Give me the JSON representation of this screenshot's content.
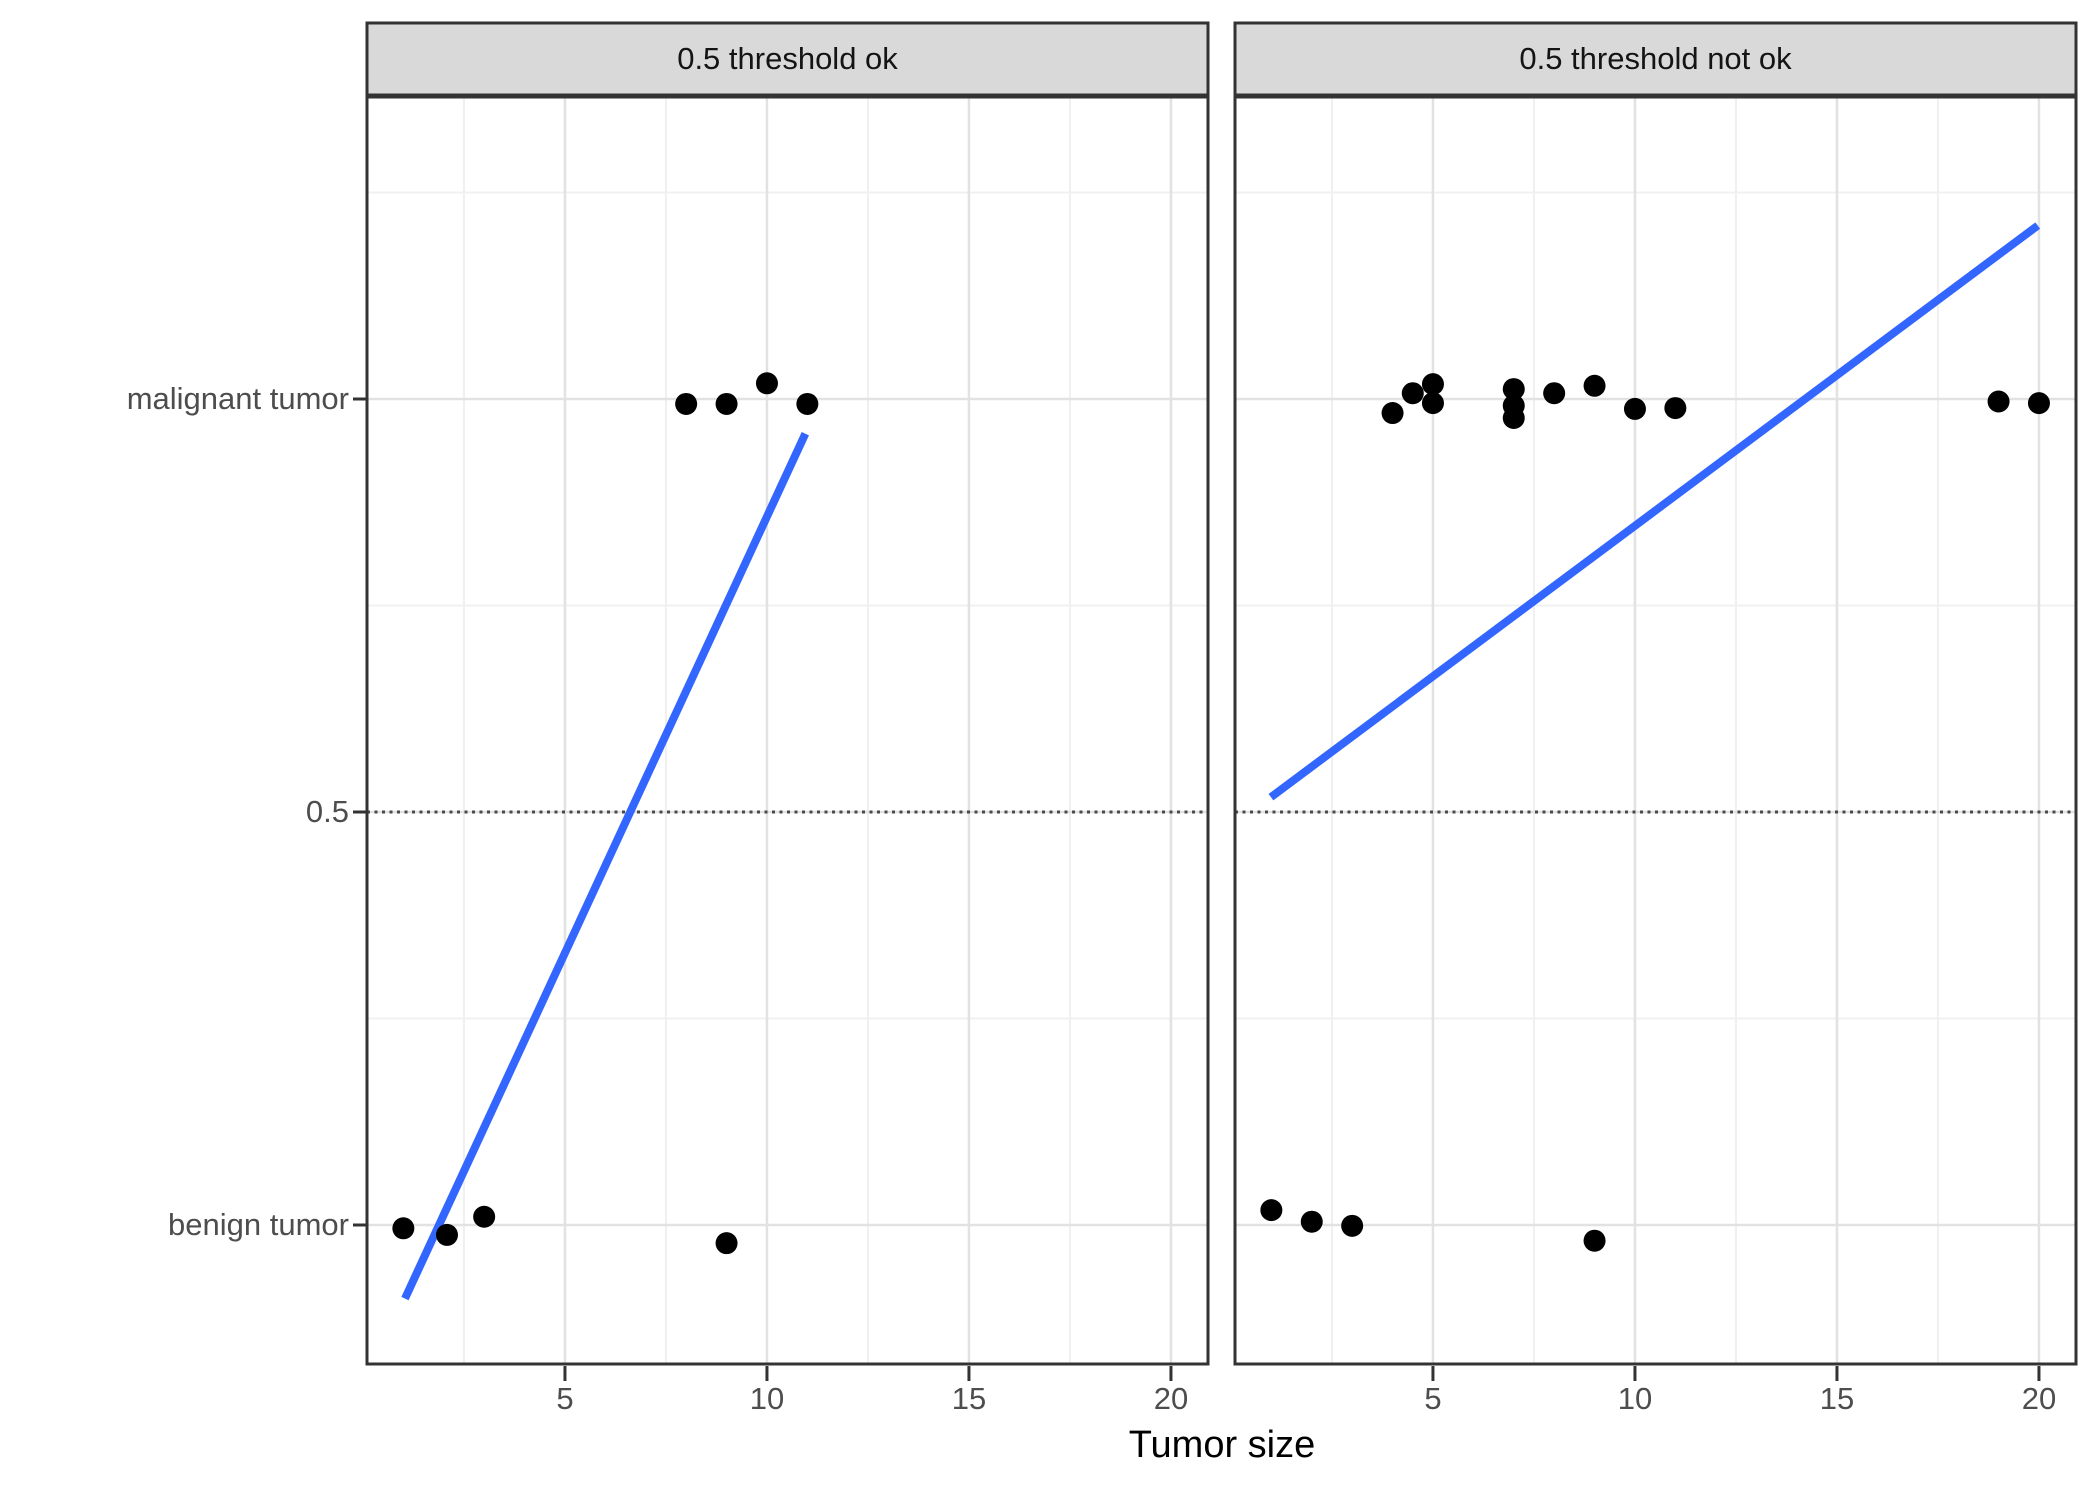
{
  "figure": {
    "xlabel": "Tumor size",
    "x_ticks": [
      5,
      10,
      15,
      20
    ],
    "y_ticks": [
      {
        "label": "malignant tumor",
        "value": 1
      },
      {
        "label": "0.5",
        "value": 0.5
      },
      {
        "label": "benign tumor",
        "value": 0
      }
    ],
    "threshold_value": 0.5
  },
  "chart_data": {
    "type": "scatter",
    "title": "",
    "xlabel": "Tumor size",
    "ylabel": "",
    "xlim": [
      0.1,
      20.9
    ],
    "ylim": [
      -0.17,
      1.37
    ],
    "x_ticks": [
      5,
      10,
      15,
      20
    ],
    "y_tick_labels": [
      "benign tumor",
      "0.5",
      "malignant tumor"
    ],
    "y_tick_values": [
      0,
      0.5,
      1
    ],
    "grid": "on",
    "threshold": 0.5,
    "facets": [
      {
        "title": "0.5 threshold ok",
        "points": [
          {
            "x": 8.0,
            "y": 0.994,
            "class": "malignant tumor"
          },
          {
            "x": 9.0,
            "y": 0.994,
            "class": "malignant tumor"
          },
          {
            "x": 10.0,
            "y": 1.019,
            "class": "malignant tumor"
          },
          {
            "x": 11.0,
            "y": 0.994,
            "class": "malignant tumor"
          },
          {
            "x": 1.0,
            "y": -0.004,
            "class": "benign tumor"
          },
          {
            "x": 2.08,
            "y": -0.012,
            "class": "benign tumor"
          },
          {
            "x": 3.0,
            "y": 0.01,
            "class": "benign tumor"
          },
          {
            "x": 9.0,
            "y": -0.022,
            "class": "benign tumor"
          }
        ],
        "regression_line": {
          "x1": 1.04,
          "y1": -0.089,
          "x2": 10.95,
          "y2": 0.958
        }
      },
      {
        "title": "0.5 threshold not ok",
        "points": [
          {
            "x": 4.0,
            "y": 0.983,
            "class": "malignant tumor"
          },
          {
            "x": 4.5,
            "y": 1.007,
            "class": "malignant tumor"
          },
          {
            "x": 5.0,
            "y": 1.018,
            "class": "malignant tumor"
          },
          {
            "x": 5.0,
            "y": 0.995,
            "class": "malignant tumor"
          },
          {
            "x": 7.0,
            "y": 1.012,
            "class": "malignant tumor"
          },
          {
            "x": 7.0,
            "y": 0.992,
            "class": "malignant tumor"
          },
          {
            "x": 7.0,
            "y": 0.977,
            "class": "malignant tumor"
          },
          {
            "x": 8.0,
            "y": 1.007,
            "class": "malignant tumor"
          },
          {
            "x": 9.0,
            "y": 1.016,
            "class": "malignant tumor"
          },
          {
            "x": 10.0,
            "y": 0.988,
            "class": "malignant tumor"
          },
          {
            "x": 11.0,
            "y": 0.989,
            "class": "malignant tumor"
          },
          {
            "x": 19.0,
            "y": 0.997,
            "class": "malignant tumor"
          },
          {
            "x": 20.0,
            "y": 0.995,
            "class": "malignant tumor"
          },
          {
            "x": 1.0,
            "y": 0.018,
            "class": "benign tumor"
          },
          {
            "x": 2.0,
            "y": 0.004,
            "class": "benign tumor"
          },
          {
            "x": 3.0,
            "y": -0.001,
            "class": "benign tumor"
          },
          {
            "x": 9.0,
            "y": -0.019,
            "class": "benign tumor"
          }
        ],
        "regression_line": {
          "x1": 0.99,
          "y1": 0.518,
          "x2": 19.97,
          "y2": 1.21
        }
      }
    ]
  },
  "colors": {
    "regression_line": "#3366FF",
    "point": "#000000",
    "strip_fill": "#D9D9D9",
    "border": "#333333",
    "grid_major": "#E2E2E2",
    "grid_minor": "#F0F0F0",
    "axis_text": "#4D4D4D",
    "threshold_line": "#4A4A4A",
    "panel_background": "#FFFFFF"
  }
}
